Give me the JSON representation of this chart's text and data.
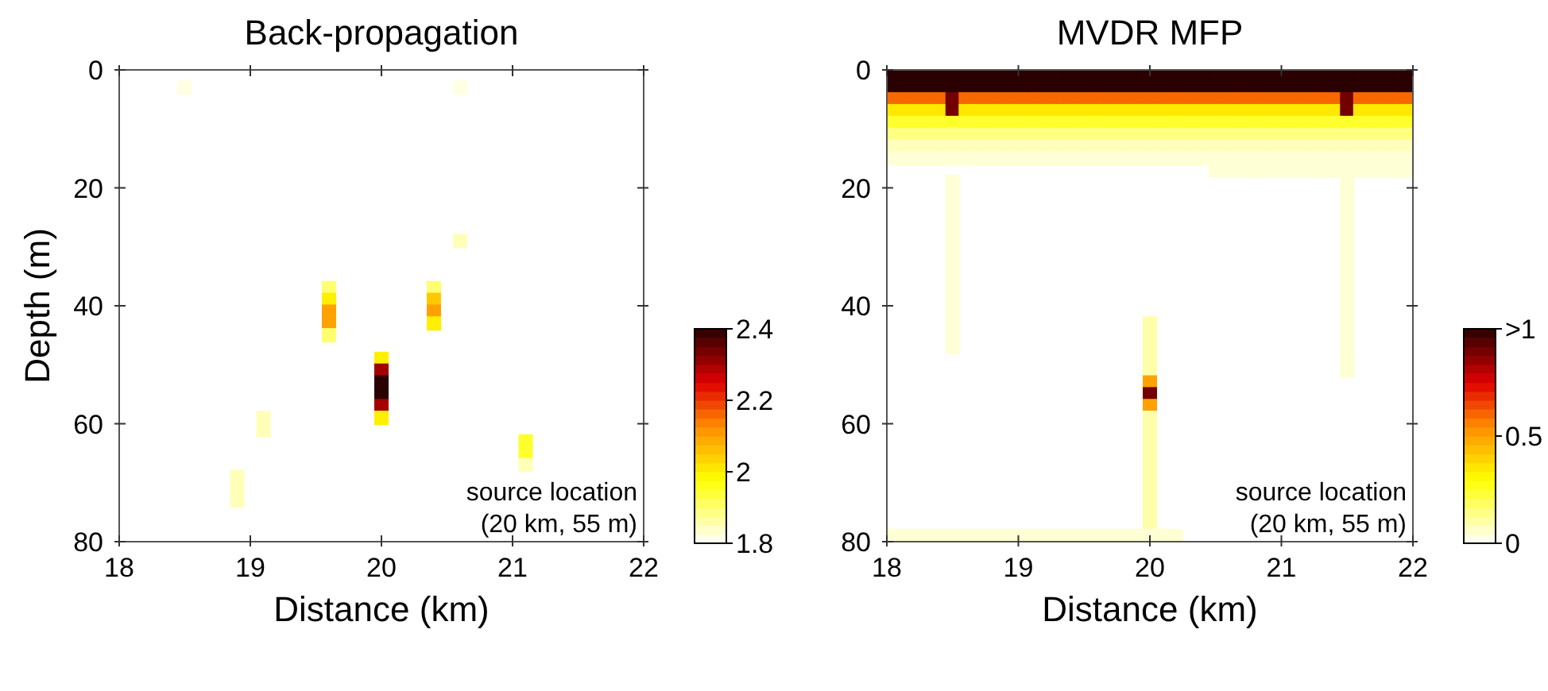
{
  "chart_data": [
    {
      "type": "scatter",
      "title": "Back-propagation",
      "xlabel": "Distance (km)",
      "ylabel": "Depth (m)",
      "marker": "square",
      "x": [
        18.5,
        20.6,
        20.6,
        19.6,
        19.6,
        19.6,
        19.6,
        19.6,
        20.4,
        20.4,
        20.4,
        20.4,
        20,
        20,
        20,
        20,
        20,
        20,
        19.1,
        19.1,
        21.1,
        21.1,
        21.1,
        18.9,
        18.9,
        18.9
      ],
      "values": [
        3,
        3,
        29,
        37,
        39,
        41,
        43,
        45,
        37,
        39,
        41,
        43,
        49,
        51,
        53,
        55,
        57,
        59,
        59,
        61,
        63,
        65,
        67,
        69,
        71,
        73
      ],
      "cvalues": [
        1.82,
        1.82,
        1.85,
        1.9,
        2.0,
        2.1,
        2.1,
        1.9,
        1.9,
        2.05,
        2.1,
        2.0,
        2.0,
        2.3,
        2.4,
        2.4,
        2.3,
        2.0,
        1.85,
        1.85,
        1.95,
        1.95,
        1.85,
        1.85,
        1.85,
        1.85
      ],
      "xlim": [
        18,
        22
      ],
      "xticks": [
        18,
        19,
        20,
        21,
        22
      ],
      "ylim": [
        80,
        0
      ],
      "yticks": [
        0,
        20,
        40,
        60,
        80
      ],
      "clim": [
        1.8,
        2.4
      ],
      "cticks": [
        1.8,
        2,
        2.2,
        2.4
      ],
      "annotations": [
        "source location\n(20 km, 55 m)"
      ]
    },
    {
      "type": "scatter",
      "title": "MVDR MFP",
      "xlabel": "Distance (km)",
      "marker": "square",
      "x": [
        18,
        18.1,
        18.2,
        18.3,
        18.4,
        18.5,
        18.6,
        18.7,
        18.8,
        18.9,
        19,
        19.1,
        19.2,
        19.3,
        19.4,
        19.5,
        19.6,
        19.7,
        19.8,
        19.9,
        20,
        20.1,
        20.2,
        20.3,
        20.4,
        20.5,
        20.6,
        20.7,
        20.8,
        20.9,
        21,
        21.1,
        21.2,
        21.3,
        21.4,
        21.5,
        21.6,
        21.7,
        21.8,
        21.9,
        22,
        18,
        18.1,
        18.2,
        18.3,
        18.4,
        18.5,
        18.6,
        18.7,
        18.8,
        18.9,
        19,
        19.1,
        19.2,
        19.3,
        19.4,
        19.5,
        19.6,
        19.7,
        19.8,
        19.9,
        20,
        20.1,
        20.2,
        20.3,
        20.4,
        20.5,
        20.6,
        20.7,
        20.8,
        20.9,
        21,
        21.1,
        21.2,
        21.3,
        21.4,
        21.5,
        21.6,
        21.7,
        21.8,
        21.9,
        22,
        18,
        18.1,
        18.2,
        18.3,
        18.4,
        18.5,
        18.6,
        18.7,
        18.8,
        18.9,
        19,
        19.1,
        19.2,
        19.3,
        19.4,
        19.5,
        19.6,
        19.7,
        19.8,
        19.9,
        20,
        20.1,
        20.2,
        20.3,
        20.4,
        20.5,
        20.6,
        20.7,
        20.8,
        20.9,
        21,
        21.1,
        21.2,
        21.3,
        21.4,
        21.5,
        21.6,
        21.7,
        21.8,
        21.9,
        22,
        18,
        18.1,
        18.2,
        18.3,
        18.4,
        18.5,
        18.6,
        18.7,
        18.8,
        18.9,
        19,
        19.1,
        19.2,
        19.3,
        19.4,
        19.5,
        19.6,
        19.7,
        19.8,
        19.9,
        20,
        20.1,
        20.2,
        20.3,
        20.4,
        20.5,
        20.6,
        20.7,
        20.8,
        20.9,
        21,
        21.1,
        21.2,
        21.3,
        21.4,
        21.5,
        21.6,
        21.7,
        21.8,
        21.9,
        22,
        18,
        18.1,
        18.2,
        18.3,
        18.4,
        18.5,
        18.6,
        18.7,
        18.8,
        18.9,
        19,
        19.1,
        19.2,
        19.3,
        19.4,
        19.5,
        19.6,
        19.7,
        19.8,
        19.9,
        20,
        20.1,
        20.2,
        20.3,
        20.4,
        20.5,
        20.6,
        20.7,
        20.8,
        20.9,
        21,
        21.1,
        21.2,
        21.3,
        21.4,
        21.5,
        21.6,
        21.7,
        21.8,
        21.9,
        22,
        18,
        18.1,
        18.2,
        18.3,
        18.4,
        18.5,
        18.6,
        18.7,
        18.8,
        18.9,
        19,
        19.1,
        19.2,
        19.3,
        19.4,
        19.5,
        19.6,
        19.7,
        19.8,
        19.9,
        20,
        20.1,
        20.2,
        20.3,
        20.4,
        20.5,
        20.6,
        20.7,
        20.8,
        20.9,
        21,
        21.1,
        21.2,
        21.3,
        21.4,
        21.5,
        21.6,
        21.7,
        21.8,
        21.9,
        22,
        18,
        18.1,
        18.2,
        18.3,
        18.4,
        18.5,
        18.6,
        18.7,
        18.8,
        18.9,
        19,
        19.1,
        19.2,
        19.3,
        19.4,
        19.5,
        19.6,
        19.7,
        19.8,
        19.9,
        20,
        20.1,
        20.2,
        20.3,
        20.4,
        20.5,
        20.6,
        20.7,
        20.8,
        20.9,
        21,
        21.1,
        21.2,
        21.3,
        21.4,
        21.5,
        21.6,
        21.7,
        21.8,
        21.9,
        22,
        18,
        18.1,
        18.2,
        18.3,
        18.4,
        18.5,
        18.6,
        18.7,
        18.8,
        18.9,
        19,
        19.1,
        19.2,
        19.3,
        19.4,
        19.5,
        19.6,
        19.7,
        19.8,
        19.9,
        20,
        20.1,
        20.2,
        20.3,
        20.4,
        20.5,
        20.6,
        20.7,
        20.8,
        20.9,
        21,
        21.1,
        21.2,
        21.3,
        21.4,
        21.5,
        21.6,
        21.7,
        21.8,
        21.9,
        22,
        20.5,
        20.6,
        20.7,
        20.8,
        20.9,
        21,
        21.1,
        21.2,
        21.3,
        21.4,
        21.5,
        21.6,
        21.7,
        21.8,
        21.9,
        22,
        18.5,
        18.5,
        18.5,
        18.5,
        18.5,
        18.5,
        18.5,
        18.5,
        18.5,
        18.5,
        18.5,
        18.5,
        18.5,
        18.5,
        18.5,
        21.5,
        21.5,
        21.5,
        21.5,
        21.5,
        21.5,
        21.5,
        21.5,
        21.5,
        21.5,
        21.5,
        21.5,
        21.5,
        21.5,
        21.5,
        21.5,
        21.5,
        20,
        20,
        20,
        20,
        20,
        20,
        20,
        20,
        20,
        20,
        20,
        20,
        20,
        20,
        20,
        20,
        20,
        20,
        18,
        18.1,
        18.2,
        18.3,
        18.4,
        18.5,
        18.6,
        18.7,
        18.8,
        18.9,
        19,
        19.1,
        19.2,
        19.3,
        19.4,
        19.5,
        19.6,
        19.7,
        19.8,
        19.9,
        20,
        20.1,
        20.2
      ],
      "values": [
        1,
        1,
        1,
        1,
        1,
        1,
        1,
        1,
        1,
        1,
        1,
        1,
        1,
        1,
        1,
        1,
        1,
        1,
        1,
        1,
        1,
        1,
        1,
        1,
        1,
        1,
        1,
        1,
        1,
        1,
        1,
        1,
        1,
        1,
        1,
        1,
        1,
        1,
        1,
        1,
        1,
        3,
        3,
        3,
        3,
        3,
        3,
        3,
        3,
        3,
        3,
        3,
        3,
        3,
        3,
        3,
        3,
        3,
        3,
        3,
        3,
        3,
        3,
        3,
        3,
        3,
        3,
        3,
        3,
        3,
        3,
        3,
        3,
        3,
        3,
        3,
        3,
        3,
        3,
        3,
        3,
        3,
        5,
        5,
        5,
        5,
        5,
        5,
        5,
        5,
        5,
        5,
        5,
        5,
        5,
        5,
        5,
        5,
        5,
        5,
        5,
        5,
        5,
        5,
        5,
        5,
        5,
        5,
        5,
        5,
        5,
        5,
        5,
        5,
        5,
        5,
        5,
        5,
        5,
        5,
        5,
        5,
        5,
        7,
        7,
        7,
        7,
        7,
        7,
        7,
        7,
        7,
        7,
        7,
        7,
        7,
        7,
        7,
        7,
        7,
        7,
        7,
        7,
        7,
        7,
        7,
        7,
        7,
        7,
        7,
        7,
        7,
        7,
        7,
        7,
        7,
        7,
        7,
        7,
        7,
        7,
        7,
        7,
        7,
        9,
        9,
        9,
        9,
        9,
        9,
        9,
        9,
        9,
        9,
        9,
        9,
        9,
        9,
        9,
        9,
        9,
        9,
        9,
        9,
        9,
        9,
        9,
        9,
        9,
        9,
        9,
        9,
        9,
        9,
        9,
        9,
        9,
        9,
        9,
        9,
        9,
        9,
        9,
        9,
        9,
        11,
        11,
        11,
        11,
        11,
        11,
        11,
        11,
        11,
        11,
        11,
        11,
        11,
        11,
        11,
        11,
        11,
        11,
        11,
        11,
        11,
        11,
        11,
        11,
        11,
        11,
        11,
        11,
        11,
        11,
        11,
        11,
        11,
        11,
        11,
        11,
        11,
        11,
        11,
        11,
        11,
        13,
        13,
        13,
        13,
        13,
        13,
        13,
        13,
        13,
        13,
        13,
        13,
        13,
        13,
        13,
        13,
        13,
        13,
        13,
        13,
        13,
        13,
        13,
        13,
        13,
        13,
        13,
        13,
        13,
        13,
        13,
        13,
        13,
        13,
        13,
        13,
        13,
        13,
        13,
        13,
        13,
        15,
        15,
        15,
        15,
        15,
        15,
        15,
        15,
        15,
        15,
        15,
        15,
        15,
        15,
        15,
        15,
        15,
        15,
        15,
        15,
        15,
        15,
        15,
        15,
        15,
        15,
        15,
        15,
        15,
        15,
        15,
        15,
        15,
        15,
        15,
        15,
        15,
        15,
        15,
        15,
        15,
        17,
        17,
        17,
        17,
        17,
        17,
        17,
        17,
        17,
        17,
        17,
        17,
        17,
        17,
        17,
        17,
        19,
        21,
        23,
        25,
        27,
        29,
        31,
        33,
        35,
        37,
        39,
        41,
        43,
        45,
        47,
        19,
        21,
        23,
        25,
        27,
        29,
        31,
        33,
        35,
        37,
        39,
        41,
        43,
        45,
        47,
        49,
        51,
        43,
        45,
        47,
        49,
        51,
        53,
        55,
        57,
        59,
        61,
        63,
        65,
        67,
        69,
        71,
        73,
        75,
        77,
        79,
        79,
        79,
        79,
        79,
        79,
        79,
        79,
        79,
        79,
        79,
        79,
        79,
        79,
        79,
        79,
        79,
        79,
        79,
        79,
        79,
        79,
        79
      ],
      "cvalues": [
        1,
        1,
        1,
        1,
        1,
        1,
        1,
        1,
        1,
        1,
        1,
        1,
        1,
        1,
        1,
        1,
        1,
        1,
        1,
        1,
        1,
        1,
        1,
        1,
        1,
        1,
        1,
        1,
        1,
        1,
        1,
        1,
        1,
        1,
        1,
        1,
        1,
        1,
        1,
        1,
        1,
        1,
        1,
        1,
        1,
        1,
        1,
        1,
        1,
        1,
        1,
        1,
        1,
        1,
        1,
        1,
        1,
        1,
        1,
        1,
        1,
        1,
        1,
        1,
        1,
        1,
        1,
        1,
        1,
        1,
        1,
        1,
        1,
        1,
        1,
        1,
        1,
        1,
        1,
        1,
        1,
        1,
        0.6,
        0.6,
        0.6,
        0.6,
        0.6,
        0.9,
        0.6,
        0.6,
        0.6,
        0.6,
        0.6,
        0.6,
        0.6,
        0.6,
        0.6,
        0.6,
        0.6,
        0.6,
        0.6,
        0.6,
        0.6,
        0.6,
        0.6,
        0.6,
        0.6,
        0.6,
        0.6,
        0.6,
        0.6,
        0.6,
        0.6,
        0.6,
        0.6,
        0.6,
        0.6,
        0.9,
        0.6,
        0.6,
        0.6,
        0.6,
        0.6,
        0.35,
        0.35,
        0.35,
        0.35,
        0.35,
        0.9,
        0.35,
        0.35,
        0.35,
        0.35,
        0.35,
        0.35,
        0.35,
        0.35,
        0.35,
        0.35,
        0.35,
        0.35,
        0.35,
        0.35,
        0.35,
        0.35,
        0.35,
        0.35,
        0.35,
        0.35,
        0.35,
        0.35,
        0.35,
        0.35,
        0.35,
        0.35,
        0.35,
        0.35,
        0.35,
        0.9,
        0.35,
        0.35,
        0.35,
        0.35,
        0.35,
        0.25,
        0.25,
        0.25,
        0.25,
        0.25,
        0.25,
        0.25,
        0.25,
        0.25,
        0.25,
        0.25,
        0.25,
        0.25,
        0.25,
        0.25,
        0.25,
        0.25,
        0.25,
        0.25,
        0.25,
        0.25,
        0.25,
        0.25,
        0.25,
        0.25,
        0.25,
        0.25,
        0.25,
        0.25,
        0.25,
        0.25,
        0.25,
        0.25,
        0.25,
        0.25,
        0.25,
        0.25,
        0.25,
        0.25,
        0.25,
        0.25,
        0.15,
        0.15,
        0.15,
        0.15,
        0.15,
        0.15,
        0.15,
        0.15,
        0.15,
        0.15,
        0.15,
        0.15,
        0.15,
        0.15,
        0.15,
        0.15,
        0.15,
        0.15,
        0.15,
        0.15,
        0.15,
        0.15,
        0.15,
        0.15,
        0.15,
        0.15,
        0.15,
        0.15,
        0.15,
        0.15,
        0.15,
        0.15,
        0.15,
        0.15,
        0.15,
        0.15,
        0.15,
        0.15,
        0.15,
        0.15,
        0.15,
        0.08,
        0.08,
        0.08,
        0.08,
        0.08,
        0.08,
        0.08,
        0.08,
        0.08,
        0.08,
        0.08,
        0.08,
        0.08,
        0.08,
        0.08,
        0.08,
        0.08,
        0.08,
        0.08,
        0.08,
        0.08,
        0.08,
        0.08,
        0.08,
        0.08,
        0.08,
        0.08,
        0.08,
        0.08,
        0.08,
        0.08,
        0.08,
        0.08,
        0.08,
        0.08,
        0.08,
        0.08,
        0.08,
        0.08,
        0.08,
        0.08,
        0.05,
        0.05,
        0.05,
        0.05,
        0.05,
        0.05,
        0.05,
        0.05,
        0.05,
        0.05,
        0.05,
        0.05,
        0.05,
        0.05,
        0.05,
        0.05,
        0.05,
        0.05,
        0.05,
        0.05,
        0.05,
        0.05,
        0.05,
        0.05,
        0.05,
        0.05,
        0.05,
        0.05,
        0.05,
        0.05,
        0.05,
        0.05,
        0.05,
        0.05,
        0.05,
        0.05,
        0.05,
        0.05,
        0.05,
        0.05,
        0.05,
        0.05,
        0.05,
        0.05,
        0.05,
        0.05,
        0.05,
        0.05,
        0.05,
        0.05,
        0.05,
        0.05,
        0.05,
        0.05,
        0.05,
        0.05,
        0.05,
        0.05,
        0.05,
        0.05,
        0.05,
        0.05,
        0.05,
        0.05,
        0.05,
        0.05,
        0.05,
        0.05,
        0.05,
        0.05,
        0.05,
        0.05,
        0.05,
        0.05,
        0.05,
        0.05,
        0.05,
        0.05,
        0.05,
        0.05,
        0.05,
        0.05,
        0.05,
        0.05,
        0.05,
        0.05,
        0.05,
        0.05,
        0.05,
        0.1,
        0.1,
        0.1,
        0.1,
        0.1,
        0.5,
        0.9,
        0.5,
        0.1,
        0.1,
        0.1,
        0.1,
        0.1,
        0.1,
        0.1,
        0.1,
        0.1,
        0.1,
        0.05,
        0.05,
        0.05,
        0.05,
        0.05,
        0.05,
        0.05,
        0.05,
        0.05,
        0.05,
        0.05,
        0.05,
        0.05,
        0.05,
        0.05,
        0.05,
        0.05,
        0.05,
        0.05,
        0.05,
        0.05,
        0.05,
        0.05
      ],
      "xlim": [
        18,
        22
      ],
      "xticks": [
        18,
        19,
        20,
        21,
        22
      ],
      "ylim": [
        80,
        0
      ],
      "yticks": [
        0,
        20,
        40,
        60,
        80
      ],
      "clim": [
        0,
        1
      ],
      "cticks": [
        0,
        0.5,
        {
          "value": 1,
          "label": ">1"
        }
      ],
      "annotations": [
        "source location\n(20 km, 55 m)"
      ]
    }
  ]
}
